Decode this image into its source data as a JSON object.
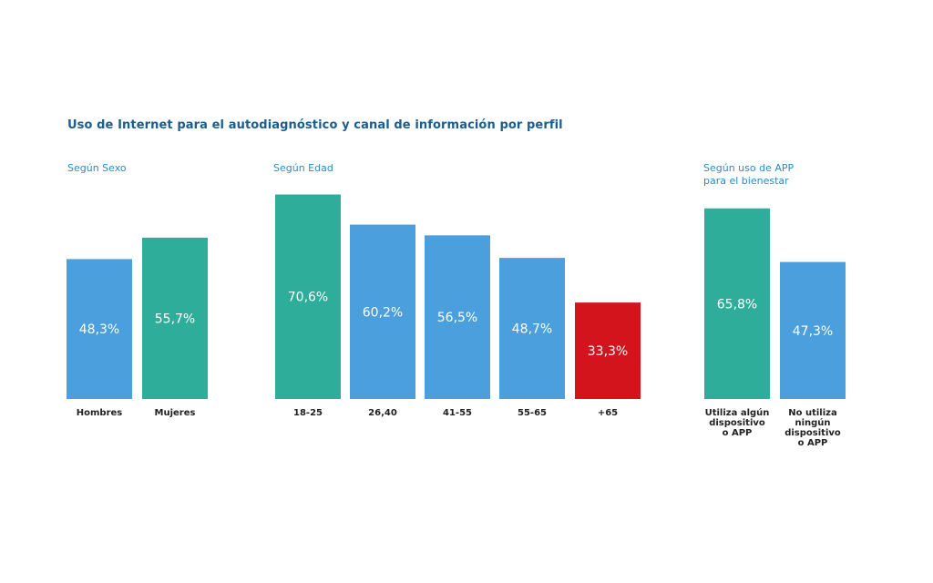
{
  "title": "Uso de Internet para el autodiagnóstico y canal de información por perfil",
  "chart_data": [
    {
      "type": "bar",
      "title": "Según Sexo",
      "categories": [
        "Hombres",
        "Mujeres"
      ],
      "values": [
        48.3,
        55.7
      ],
      "value_labels": [
        "48,3%",
        "55,7%"
      ],
      "colors": [
        "#4a9fdc",
        "#2eae9a"
      ],
      "ylim": [
        0,
        80
      ]
    },
    {
      "type": "bar",
      "title": "Según Edad",
      "categories": [
        "18-25",
        "26,40",
        "41-55",
        "55-65",
        "+65"
      ],
      "values": [
        70.6,
        60.2,
        56.5,
        48.7,
        33.3
      ],
      "value_labels": [
        "70,6%",
        "60,2%",
        "56,5%",
        "48,7%",
        "33,3%"
      ],
      "colors": [
        "#2eae9a",
        "#4a9fdc",
        "#4a9fdc",
        "#4a9fdc",
        "#d4141c"
      ],
      "ylim": [
        0,
        80
      ]
    },
    {
      "type": "bar",
      "title": "Según uso de APP para el bienestar",
      "title_lines": [
        "Según uso de APP",
        "para el bienestar"
      ],
      "categories": [
        "Utiliza algún dispositivo o APP",
        "No utiliza ningún dispositivo o APP"
      ],
      "category_lines": [
        [
          "Utiliza algún",
          "dispositivo",
          "o APP"
        ],
        [
          "No utiliza",
          "ningún",
          "dispositivo",
          "o APP"
        ]
      ],
      "values": [
        65.8,
        47.3
      ],
      "value_labels": [
        "65,8%",
        "47,3%"
      ],
      "colors": [
        "#2eae9a",
        "#4a9fdc"
      ],
      "ylim": [
        0,
        80
      ]
    }
  ]
}
